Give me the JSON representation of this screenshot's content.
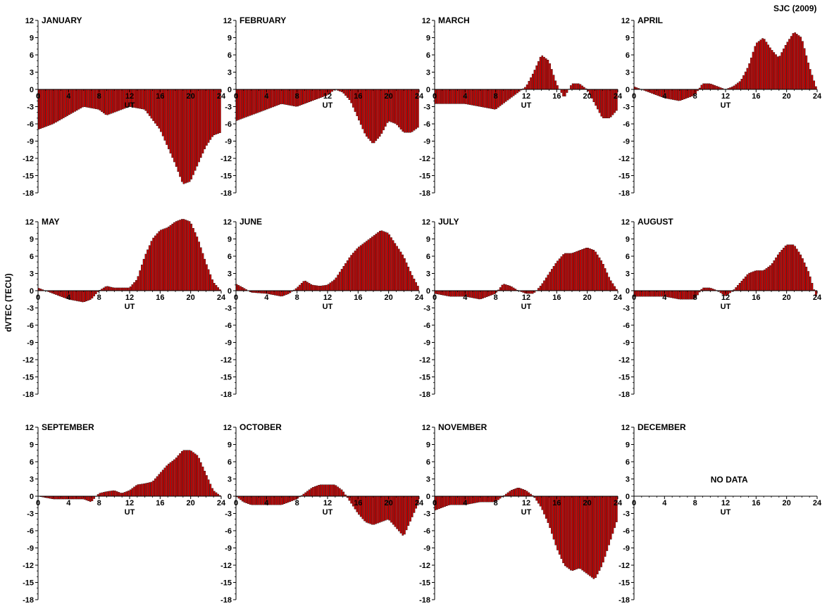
{
  "figure": {
    "title": "SJC (2009)",
    "ylabel": "dVTEC (TECU)"
  },
  "colors": {
    "bar_fill": "#cc0000",
    "bar_edge": "#000000",
    "axis": "#000000"
  },
  "chart_data": [
    {
      "type": "bar",
      "title": "JANUARY",
      "xlabel": "UT",
      "xlim": [
        0,
        24
      ],
      "ylim": [
        -18,
        12
      ],
      "xticks": [
        0,
        4,
        8,
        12,
        16,
        20,
        24
      ],
      "yticks": [
        12,
        9,
        6,
        3,
        0,
        -3,
        -6,
        -9,
        -12,
        -15,
        -18
      ],
      "x": [
        0,
        2,
        4,
        6,
        8,
        9,
        10,
        12,
        14,
        16,
        17,
        18,
        19,
        20,
        21,
        22,
        23,
        24
      ],
      "values": [
        -7,
        -6,
        -4.5,
        -3,
        -3.5,
        -4.5,
        -4,
        -3,
        -3.5,
        -7,
        -10,
        -13,
        -16.5,
        -16,
        -13,
        -10,
        -8,
        -7.5
      ],
      "no_data": ""
    },
    {
      "type": "bar",
      "title": "FEBRUARY",
      "xlabel": "UT",
      "xlim": [
        0,
        24
      ],
      "ylim": [
        -18,
        12
      ],
      "xticks": [
        0,
        4,
        8,
        12,
        16,
        20,
        24
      ],
      "yticks": [
        12,
        9,
        6,
        3,
        0,
        -3,
        -6,
        -9,
        -12,
        -15,
        -18
      ],
      "x": [
        0,
        2,
        4,
        6,
        8,
        10,
        12,
        13,
        14,
        15,
        16,
        17,
        18,
        19,
        20,
        21,
        22,
        23,
        24
      ],
      "values": [
        -5.5,
        -4.5,
        -3.5,
        -2.5,
        -3,
        -2,
        -1,
        0,
        -0.5,
        -2,
        -5,
        -8,
        -9.5,
        -8,
        -5.5,
        -6,
        -7.5,
        -7.5,
        -6.5
      ],
      "no_data": ""
    },
    {
      "type": "bar",
      "title": "MARCH",
      "xlabel": "UT",
      "xlim": [
        0,
        24
      ],
      "ylim": [
        -18,
        12
      ],
      "xticks": [
        0,
        4,
        8,
        12,
        16,
        20,
        24
      ],
      "yticks": [
        12,
        9,
        6,
        3,
        0,
        -3,
        -6,
        -9,
        -12,
        -15,
        -18
      ],
      "x": [
        0,
        2,
        4,
        6,
        8,
        10,
        11,
        12,
        13,
        14,
        15,
        16,
        17,
        18,
        19,
        20,
        21,
        22,
        23,
        24
      ],
      "values": [
        -2.5,
        -2.5,
        -2.5,
        -3,
        -3.5,
        -1.5,
        -0.5,
        0.5,
        3,
        6,
        5,
        1,
        -1.5,
        1,
        1,
        0,
        -2.5,
        -5,
        -5,
        -3.5
      ],
      "no_data": ""
    },
    {
      "type": "bar",
      "title": "APRIL",
      "xlabel": "UT",
      "xlim": [
        0,
        24
      ],
      "ylim": [
        -18,
        12
      ],
      "xticks": [
        0,
        4,
        8,
        12,
        16,
        20,
        24
      ],
      "yticks": [
        12,
        9,
        6,
        3,
        0,
        -3,
        -6,
        -9,
        -12,
        -15,
        -18
      ],
      "x": [
        0,
        2,
        4,
        6,
        8,
        9,
        10,
        11,
        12,
        13,
        14,
        15,
        16,
        17,
        18,
        19,
        20,
        21,
        22,
        23,
        24
      ],
      "values": [
        0.5,
        -0.5,
        -1.5,
        -2,
        -1,
        1,
        1,
        0.5,
        0,
        0.5,
        1.5,
        4,
        8,
        9,
        7,
        5.5,
        8,
        10,
        9,
        4,
        0
      ],
      "no_data": ""
    },
    {
      "type": "bar",
      "title": "MAY",
      "xlabel": "UT",
      "xlim": [
        0,
        24
      ],
      "ylim": [
        -18,
        12
      ],
      "xticks": [
        0,
        4,
        8,
        12,
        16,
        20,
        24
      ],
      "yticks": [
        12,
        9,
        6,
        3,
        0,
        -3,
        -6,
        -9,
        -12,
        -15,
        -18
      ],
      "x": [
        0,
        2,
        4,
        6,
        7,
        8,
        9,
        10,
        12,
        13,
        14,
        15,
        16,
        17,
        18,
        19,
        20,
        21,
        22,
        23,
        24
      ],
      "values": [
        0.5,
        -0.5,
        -1.5,
        -2,
        -1.5,
        0,
        0.8,
        0.5,
        0.5,
        2,
        6,
        9,
        10.5,
        11,
        12,
        12.5,
        12,
        9,
        5,
        1.5,
        0
      ],
      "no_data": ""
    },
    {
      "type": "bar",
      "title": "JUNE",
      "xlabel": "UT",
      "xlim": [
        0,
        24
      ],
      "ylim": [
        -18,
        12
      ],
      "xticks": [
        0,
        4,
        8,
        12,
        16,
        20,
        24
      ],
      "yticks": [
        12,
        9,
        6,
        3,
        0,
        -3,
        -6,
        -9,
        -12,
        -15,
        -18
      ],
      "x": [
        0,
        1,
        2,
        4,
        6,
        7,
        8,
        9,
        10,
        11,
        12,
        13,
        14,
        15,
        16,
        17,
        18,
        19,
        20,
        21,
        22,
        23,
        24
      ],
      "values": [
        1.2,
        0.5,
        -0.3,
        -0.5,
        -1,
        -0.5,
        0.5,
        1.8,
        1,
        0.8,
        1,
        2,
        4,
        6,
        7.5,
        8.5,
        9.5,
        10.5,
        10,
        8,
        6,
        3,
        0.5
      ],
      "no_data": ""
    },
    {
      "type": "bar",
      "title": "JULY",
      "xlabel": "UT",
      "xlim": [
        0,
        24
      ],
      "ylim": [
        -18,
        12
      ],
      "xticks": [
        0,
        4,
        8,
        12,
        16,
        20,
        24
      ],
      "yticks": [
        12,
        9,
        6,
        3,
        0,
        -3,
        -6,
        -9,
        -12,
        -15,
        -18
      ],
      "x": [
        0,
        2,
        4,
        6,
        8,
        9,
        10,
        11,
        12,
        13,
        14,
        15,
        16,
        17,
        18,
        19,
        20,
        21,
        22,
        23,
        24
      ],
      "values": [
        -0.5,
        -1,
        -1,
        -1.5,
        -0.5,
        1.2,
        0.8,
        0,
        -0.5,
        -0.5,
        1,
        3,
        5,
        6.5,
        6.5,
        7,
        7.5,
        7,
        5,
        2,
        0
      ],
      "no_data": ""
    },
    {
      "type": "bar",
      "title": "AUGUST",
      "xlabel": "UT",
      "xlim": [
        0,
        24
      ],
      "ylim": [
        -18,
        12
      ],
      "xticks": [
        0,
        4,
        8,
        12,
        16,
        20,
        24
      ],
      "yticks": [
        12,
        9,
        6,
        3,
        0,
        -3,
        -6,
        -9,
        -12,
        -15,
        -18
      ],
      "x": [
        0,
        2,
        4,
        6,
        8,
        9,
        10,
        11,
        12,
        13,
        14,
        15,
        16,
        17,
        18,
        19,
        20,
        21,
        22,
        23,
        24
      ],
      "values": [
        -1,
        -1,
        -1,
        -1.5,
        -1.5,
        0.5,
        0.5,
        0,
        -1,
        0,
        1.5,
        3,
        3.5,
        3.5,
        4.5,
        6.5,
        8,
        8,
        6,
        3,
        -1.5
      ],
      "no_data": ""
    },
    {
      "type": "bar",
      "title": "SEPTEMBER",
      "xlabel": "UT",
      "xlim": [
        0,
        24
      ],
      "ylim": [
        -18,
        12
      ],
      "xticks": [
        0,
        4,
        8,
        12,
        16,
        20,
        24
      ],
      "yticks": [
        12,
        9,
        6,
        3,
        0,
        -3,
        -6,
        -9,
        -12,
        -15,
        -18
      ],
      "x": [
        0,
        2,
        4,
        6,
        7,
        8,
        9,
        10,
        11,
        12,
        13,
        14,
        15,
        16,
        17,
        18,
        19,
        20,
        21,
        22,
        23,
        24
      ],
      "values": [
        0,
        -0.5,
        -0.5,
        -0.5,
        -1,
        0.5,
        0.8,
        1,
        0.5,
        1,
        2,
        2.2,
        2.5,
        4,
        5.5,
        6.5,
        8,
        8,
        7,
        4,
        1,
        0
      ],
      "no_data": ""
    },
    {
      "type": "bar",
      "title": "OCTOBER",
      "xlabel": "UT",
      "xlim": [
        0,
        24
      ],
      "ylim": [
        -18,
        12
      ],
      "xticks": [
        0,
        4,
        8,
        12,
        16,
        20,
        24
      ],
      "yticks": [
        12,
        9,
        6,
        3,
        0,
        -3,
        -6,
        -9,
        -12,
        -15,
        -18
      ],
      "x": [
        0,
        1,
        2,
        4,
        6,
        8,
        9,
        10,
        11,
        12,
        13,
        14,
        15,
        16,
        17,
        18,
        19,
        20,
        21,
        22,
        23,
        24
      ],
      "values": [
        0,
        -1,
        -1.5,
        -1.5,
        -1.5,
        -0.5,
        0.5,
        1.5,
        2,
        2,
        2,
        1,
        -1,
        -3,
        -4.5,
        -5,
        -4.5,
        -4,
        -5.5,
        -7,
        -4,
        -1
      ],
      "no_data": ""
    },
    {
      "type": "bar",
      "title": "NOVEMBER",
      "xlabel": "UT",
      "xlim": [
        0,
        24
      ],
      "ylim": [
        -18,
        12
      ],
      "xticks": [
        0,
        4,
        8,
        12,
        16,
        20,
        24
      ],
      "yticks": [
        12,
        9,
        6,
        3,
        0,
        -3,
        -6,
        -9,
        -12,
        -15,
        -18
      ],
      "x": [
        0,
        2,
        4,
        6,
        8,
        9,
        10,
        11,
        12,
        13,
        14,
        15,
        16,
        17,
        18,
        19,
        20,
        21,
        22,
        23,
        24
      ],
      "values": [
        -2.5,
        -1.5,
        -1.5,
        -1,
        -1,
        0,
        1,
        1.5,
        1,
        0,
        -2,
        -5,
        -9,
        -12,
        -13,
        -12.5,
        -13.5,
        -14.5,
        -12,
        -8,
        -4
      ],
      "no_data": ""
    },
    {
      "type": "bar",
      "title": "DECEMBER",
      "xlabel": "UT",
      "xlim": [
        0,
        24
      ],
      "ylim": [
        -18,
        12
      ],
      "xticks": [
        0,
        4,
        8,
        12,
        16,
        20,
        24
      ],
      "yticks": [
        12,
        9,
        6,
        3,
        0,
        -3,
        -6,
        -9,
        -12,
        -15,
        -18
      ],
      "x": [],
      "values": [],
      "no_data": "NO DATA"
    }
  ]
}
